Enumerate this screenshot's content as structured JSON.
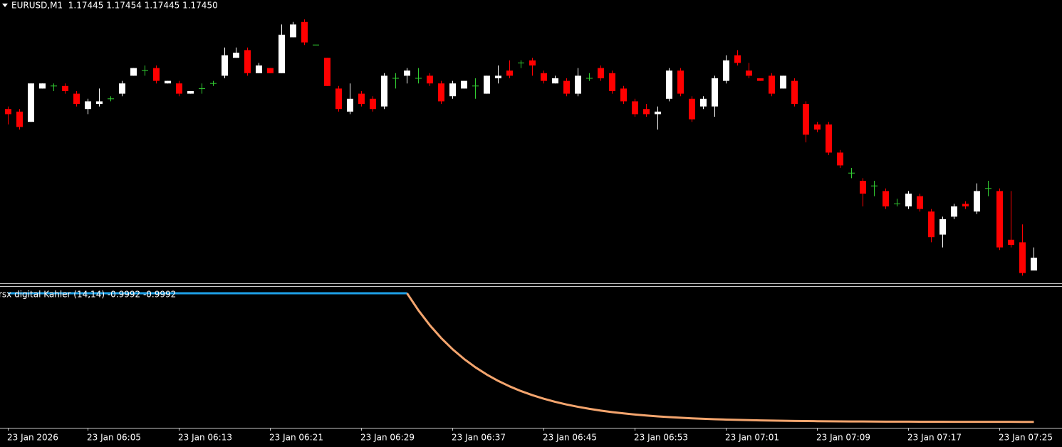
{
  "chart_data": [
    {
      "type": "candlestick",
      "title": "EURUSD,M1  1.17445 1.17454 1.17445 1.17450",
      "up_color": "#ffffff",
      "down_color": "#ff0000",
      "doji_color": "#32cd32",
      "ylim": [
        1.1744,
        1.1755
      ],
      "xticks": [
        {
          "value": 0,
          "label": "23 Jan 2026"
        },
        {
          "value": 7,
          "label": "23 Jan 06:05"
        },
        {
          "value": 15,
          "label": "23 Jan 06:13"
        },
        {
          "value": 23,
          "label": "23 Jan 06:21"
        },
        {
          "value": 31,
          "label": "23 Jan 06:29"
        },
        {
          "value": 39,
          "label": "23 Jan 06:37"
        },
        {
          "value": 47,
          "label": "23 Jan 06:45"
        },
        {
          "value": 55,
          "label": "23 Jan 06:53"
        },
        {
          "value": 63,
          "label": "23 Jan 07:01"
        },
        {
          "value": 71,
          "label": "23 Jan 07:09"
        },
        {
          "value": 79,
          "label": "23 Jan 07:17"
        },
        {
          "value": 87,
          "label": "23 Jan 07:25"
        }
      ],
      "open": [
        1.17508,
        1.17507,
        1.17503,
        1.17516,
        1.17517,
        1.17517,
        1.17514,
        1.17508,
        1.1751,
        1.17512,
        1.17514,
        1.17521,
        1.17523,
        1.17524,
        1.17518,
        1.17518,
        1.17514,
        1.17516,
        1.17518,
        1.17521,
        1.17528,
        1.17531,
        1.17522,
        1.17524,
        1.17522,
        1.17536,
        1.17542,
        1.17533,
        1.17528,
        1.17516,
        1.17507,
        1.17514,
        1.17512,
        1.17509,
        1.1752,
        1.17521,
        1.1752,
        1.17521,
        1.17518,
        1.17513,
        1.17516,
        1.17517,
        1.17514,
        1.1752,
        1.17523,
        1.17526,
        1.17527,
        1.17522,
        1.17518,
        1.17519,
        1.17514,
        1.1752,
        1.17524,
        1.17522,
        1.17516,
        1.17511,
        1.17508,
        1.17506,
        1.17512,
        1.17523,
        1.17512,
        1.17509,
        1.17509,
        1.17519,
        1.17529,
        1.17523,
        1.1752,
        1.17521,
        1.17516,
        1.17519,
        1.1751,
        1.17502,
        1.17502,
        1.17491,
        1.17483,
        1.1748,
        1.17478,
        1.17476,
        1.17471,
        1.1747,
        1.17474,
        1.17468,
        1.17459,
        1.17466,
        1.17471,
        1.17468,
        1.17477,
        1.17476,
        1.17457,
        1.17456,
        1.17445
      ],
      "high": [
        1.17509,
        1.17508,
        1.17518,
        1.17518,
        1.17518,
        1.17518,
        1.17515,
        1.17512,
        1.17516,
        1.17513,
        1.17519,
        1.17524,
        1.17525,
        1.17525,
        1.17519,
        1.17519,
        1.17515,
        1.17518,
        1.17519,
        1.17532,
        1.17532,
        1.17532,
        1.17526,
        1.17524,
        1.17541,
        1.17542,
        1.17543,
        1.17533,
        1.17528,
        1.17517,
        1.17518,
        1.17515,
        1.17513,
        1.17522,
        1.17522,
        1.17524,
        1.17524,
        1.17522,
        1.17519,
        1.17519,
        1.17519,
        1.1752,
        1.17521,
        1.17525,
        1.17527,
        1.17527,
        1.17528,
        1.17523,
        1.17521,
        1.1752,
        1.17524,
        1.17522,
        1.17525,
        1.17523,
        1.17517,
        1.17512,
        1.1751,
        1.17509,
        1.17524,
        1.17524,
        1.17513,
        1.17513,
        1.17521,
        1.17529,
        1.17531,
        1.17526,
        1.1752,
        1.17522,
        1.17521,
        1.1752,
        1.17511,
        1.17503,
        1.17503,
        1.17492,
        1.17485,
        1.17481,
        1.1748,
        1.17477,
        1.17473,
        1.17476,
        1.17475,
        1.17469,
        1.17466,
        1.17471,
        1.17472,
        1.17479,
        1.1748,
        1.17477,
        1.17476,
        1.17463,
        1.17454
      ],
      "low": [
        1.17502,
        1.175,
        1.17503,
        1.17516,
        1.17515,
        1.17514,
        1.17509,
        1.17506,
        1.17509,
        1.17511,
        1.17513,
        1.17521,
        1.17521,
        1.17518,
        1.17518,
        1.17513,
        1.17514,
        1.17514,
        1.17517,
        1.1752,
        1.17528,
        1.17521,
        1.17522,
        1.17522,
        1.17522,
        1.17536,
        1.17533,
        1.17533,
        1.17517,
        1.17507,
        1.17506,
        1.17509,
        1.17507,
        1.17508,
        1.17516,
        1.17518,
        1.17518,
        1.17517,
        1.1751,
        1.17512,
        1.17516,
        1.17512,
        1.17514,
        1.17518,
        1.1752,
        1.17524,
        1.17521,
        1.17518,
        1.17518,
        1.17513,
        1.17513,
        1.17519,
        1.17519,
        1.17514,
        1.1751,
        1.17505,
        1.17505,
        1.175,
        1.17511,
        1.17513,
        1.17503,
        1.17508,
        1.17505,
        1.17518,
        1.17525,
        1.1752,
        1.17519,
        1.17513,
        1.17516,
        1.17509,
        1.17495,
        1.17499,
        1.1749,
        1.17485,
        1.17481,
        1.1747,
        1.17474,
        1.17469,
        1.1747,
        1.17469,
        1.17468,
        1.17456,
        1.17454,
        1.17465,
        1.17469,
        1.17467,
        1.17474,
        1.17453,
        1.17454,
        1.17443,
        1.17445
      ],
      "close": [
        1.17506,
        1.17501,
        1.17518,
        1.17518,
        1.17517,
        1.17515,
        1.1751,
        1.17511,
        1.17511,
        1.17512,
        1.17518,
        1.17524,
        1.17523,
        1.17519,
        1.17519,
        1.17514,
        1.17515,
        1.17516,
        1.17518,
        1.17529,
        1.1753,
        1.17522,
        1.17525,
        1.17522,
        1.17537,
        1.17541,
        1.17534,
        1.17533,
        1.17517,
        1.17508,
        1.17512,
        1.1751,
        1.17508,
        1.17521,
        1.1752,
        1.17523,
        1.1752,
        1.17518,
        1.17511,
        1.17518,
        1.17519,
        1.17517,
        1.17521,
        1.17521,
        1.17521,
        1.17526,
        1.17525,
        1.17519,
        1.1752,
        1.17514,
        1.17521,
        1.1752,
        1.1752,
        1.17515,
        1.17511,
        1.17506,
        1.17506,
        1.17507,
        1.17523,
        1.17514,
        1.17504,
        1.17512,
        1.1752,
        1.17527,
        1.17526,
        1.17521,
        1.17519,
        1.17514,
        1.17521,
        1.1751,
        1.17498,
        1.175,
        1.17491,
        1.17486,
        1.17483,
        1.17475,
        1.17478,
        1.1747,
        1.17471,
        1.17475,
        1.17469,
        1.17458,
        1.17465,
        1.1747,
        1.1747,
        1.17476,
        1.17477,
        1.17454,
        1.17455,
        1.17444,
        1.1745
      ]
    },
    {
      "type": "line",
      "title": "rsx digital Kahler (14,14) -0.9992 -0.9992",
      "ylim": [
        -1.08,
        1.1
      ],
      "series": [
        {
          "color": "#1ea0e6",
          "values": [
            1,
            1,
            1,
            1,
            1,
            1,
            1,
            1,
            1,
            1,
            1,
            1,
            1,
            1,
            1,
            1,
            1,
            1,
            1,
            1,
            1,
            1,
            1,
            1,
            1,
            1,
            1,
            1,
            1,
            1,
            1,
            1,
            1,
            1,
            1,
            1,
            null,
            null,
            null,
            null,
            null,
            null,
            null,
            null,
            null,
            null,
            null,
            null,
            null,
            null,
            null,
            null,
            null,
            null,
            null,
            null,
            null,
            null,
            null,
            null,
            null,
            null,
            null,
            null,
            null,
            null,
            null,
            null,
            null,
            null,
            null,
            null,
            null,
            null,
            null,
            null,
            null,
            null,
            null,
            null,
            null,
            null,
            null,
            null,
            null,
            null,
            null,
            null,
            null,
            null,
            null
          ]
        },
        {
          "color": "#f4a56e",
          "values": [
            null,
            null,
            null,
            null,
            null,
            null,
            null,
            null,
            null,
            null,
            null,
            null,
            null,
            null,
            null,
            null,
            null,
            null,
            null,
            null,
            null,
            null,
            null,
            null,
            null,
            null,
            null,
            null,
            null,
            null,
            null,
            null,
            null,
            null,
            null,
            1,
            0.7338,
            0.503,
            0.3029,
            0.1294,
            -0.0209,
            -0.1513,
            -0.2642,
            -0.3622,
            -0.4471,
            -0.5207,
            -0.5845,
            -0.6398,
            -0.6878,
            -0.7293,
            -0.7654,
            -0.7966,
            -0.8237,
            -0.8472,
            -0.8675,
            -0.8851,
            -0.9004,
            -0.9137,
            -0.9252,
            -0.9351,
            -0.9438,
            -0.9513,
            -0.9577,
            -0.9634,
            -0.9682,
            -0.9725,
            -0.9761,
            -0.9793,
            -0.9821,
            -0.9845,
            -0.9865,
            -0.9883,
            -0.9899,
            -0.9912,
            -0.9924,
            -0.9934,
            -0.9943,
            -0.995,
            -0.9957,
            -0.9963,
            -0.9968,
            -0.9972,
            -0.9976,
            -0.9979,
            -0.9982,
            -0.9984,
            -0.9986,
            -0.9988,
            -0.999,
            -0.9991,
            -0.9992
          ]
        }
      ]
    }
  ]
}
